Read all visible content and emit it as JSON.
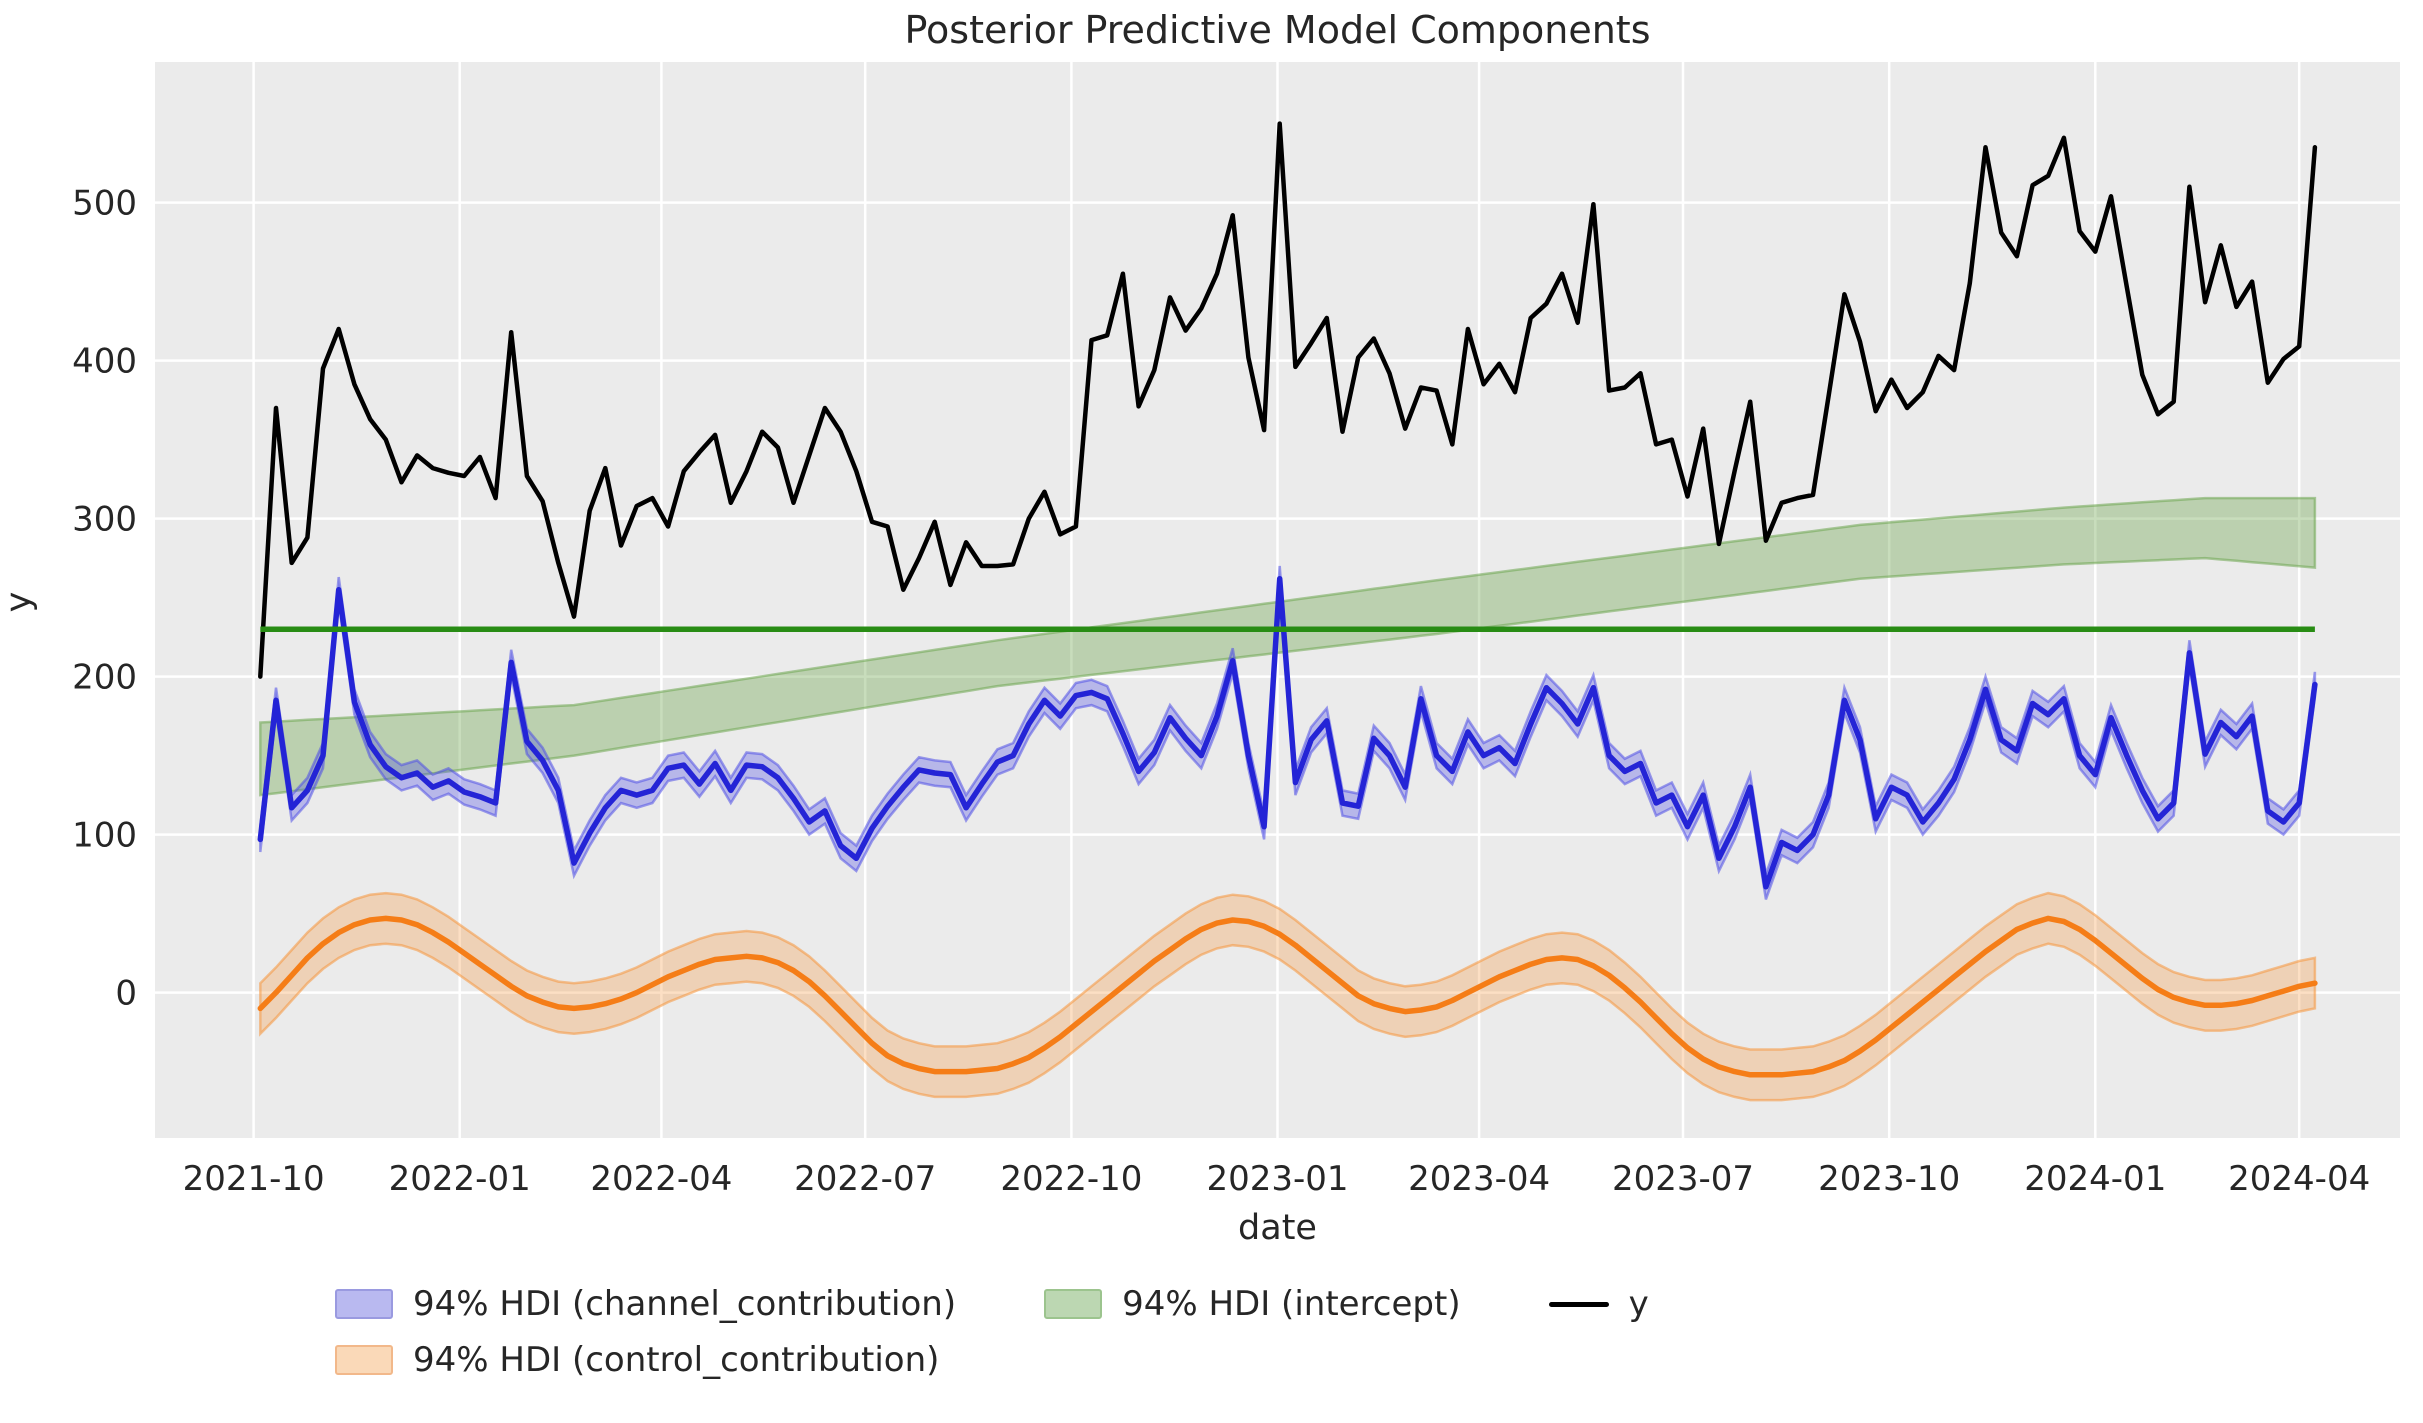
{
  "title": "Posterior Predictive Model Components",
  "xlabel": "date",
  "ylabel": "y",
  "legend": [
    {
      "label": "94% HDI (channel_contribution)",
      "type": "patch",
      "fill": "#b9b9f0",
      "border": "#9a9ae0"
    },
    {
      "label": "94% HDI (intercept)",
      "type": "patch",
      "fill": "#bcd7b2",
      "border": "#9cc48e"
    },
    {
      "label": "y",
      "type": "line",
      "fill": "#000000",
      "border": "#000000"
    },
    {
      "label": "94% HDI (control_contribution)",
      "type": "patch",
      "fill": "#fad9b8",
      "border": "#f2b88a"
    }
  ],
  "colors": {
    "plot_bg": "#ebebeb",
    "grid": "#ffffff",
    "y_line": "#000000",
    "channel_line": "#2424d6",
    "channel_band": "rgba(80,80,230,0.33)",
    "channel_band_edge": "rgba(80,80,230,0.55)",
    "control_line": "#f57d17",
    "control_band": "rgba(246,150,60,0.30)",
    "control_band_edge": "rgba(246,150,60,0.55)",
    "intercept_line": "#288c14",
    "intercept_band": "rgba(110,165,80,0.38)",
    "intercept_band_edge": "rgba(110,165,80,0.55)",
    "text": "#262626"
  },
  "chart_data": {
    "type": "line",
    "title": "Posterior Predictive Model Components",
    "xlabel": "date",
    "ylabel": "y",
    "grid": true,
    "legend_position": "lower center outside",
    "x_start_date": "2021-10-04",
    "x_freq_days": 7,
    "n_points": 132,
    "x_domain": [
      "2021-08-18",
      "2024-05-16"
    ],
    "ylim": [
      -92,
      589
    ],
    "yticks": [
      0,
      100,
      200,
      300,
      400,
      500
    ],
    "xticks": [
      {
        "date": "2021-10-01",
        "label": "2021-10"
      },
      {
        "date": "2022-01-01",
        "label": "2022-01"
      },
      {
        "date": "2022-04-01",
        "label": "2022-04"
      },
      {
        "date": "2022-07-01",
        "label": "2022-07"
      },
      {
        "date": "2022-10-01",
        "label": "2022-10"
      },
      {
        "date": "2023-01-01",
        "label": "2023-01"
      },
      {
        "date": "2023-04-01",
        "label": "2023-04"
      },
      {
        "date": "2023-07-01",
        "label": "2023-07"
      },
      {
        "date": "2023-10-01",
        "label": "2023-10"
      },
      {
        "date": "2024-01-01",
        "label": "2024-01"
      },
      {
        "date": "2024-04-01",
        "label": "2024-04"
      }
    ],
    "series": [
      {
        "name": "y",
        "style": "line",
        "values": [
          200,
          370,
          272,
          288,
          395,
          420,
          385,
          363,
          350,
          323,
          340,
          332,
          329,
          327,
          339,
          313,
          418,
          327,
          311,
          272,
          238,
          305,
          332,
          283,
          308,
          313,
          295,
          330,
          342,
          353,
          310,
          330,
          355,
          345,
          310,
          340,
          370,
          355,
          330,
          298,
          295,
          255,
          275,
          298,
          258,
          285,
          270,
          270,
          271,
          300,
          317,
          290,
          295,
          413,
          416,
          455,
          371,
          394,
          440,
          419,
          433,
          455,
          492,
          402,
          356,
          550,
          396,
          411,
          427,
          355,
          402,
          414,
          392,
          357,
          383,
          381,
          347,
          420,
          385,
          398,
          380,
          427,
          436,
          455,
          424,
          499,
          381,
          383,
          392,
          347,
          350,
          314,
          357,
          284,
          330,
          374,
          286,
          310,
          313,
          315,
          378,
          442,
          412,
          368,
          388,
          370,
          380,
          403,
          394,
          449,
          535,
          481,
          466,
          511,
          517,
          541,
          482,
          469,
          504,
          447,
          391,
          366,
          374,
          510,
          437,
          473,
          434,
          450,
          386,
          401,
          409,
          535
        ]
      },
      {
        "name": "channel_contribution",
        "style": "line+hdi",
        "hdi_label": "94% HDI (channel_contribution)",
        "hdi_halfwidth": 8,
        "values": [
          97,
          185,
          117,
          128,
          150,
          255,
          184,
          157,
          143,
          136,
          139,
          130,
          134,
          127,
          124,
          120,
          209,
          159,
          147,
          128,
          82,
          101,
          117,
          128,
          125,
          128,
          142,
          144,
          132,
          145,
          128,
          144,
          143,
          136,
          123,
          108,
          115,
          93,
          85,
          104,
          118,
          130,
          141,
          139,
          138,
          117,
          132,
          146,
          150,
          170,
          185,
          175,
          188,
          190,
          186,
          164,
          140,
          152,
          174,
          161,
          150,
          175,
          210,
          150,
          105,
          262,
          133,
          160,
          172,
          120,
          118,
          161,
          150,
          130,
          186,
          150,
          140,
          165,
          150,
          155,
          145,
          170,
          193,
          183,
          170,
          193,
          150,
          140,
          145,
          120,
          125,
          105,
          125,
          85,
          105,
          130,
          67,
          95,
          90,
          100,
          125,
          185,
          160,
          110,
          130,
          125,
          108,
          120,
          135,
          160,
          192,
          160,
          153,
          183,
          176,
          186,
          150,
          138,
          174,
          150,
          128,
          110,
          120,
          215,
          151,
          171,
          162,
          175,
          115,
          108,
          120,
          195
        ]
      },
      {
        "name": "control_contribution",
        "style": "line+hdi",
        "hdi_label": "94% HDI (control_contribution)",
        "hdi_halfwidth": 16,
        "values": [
          -10,
          0,
          11,
          22,
          31,
          38,
          43,
          46,
          47,
          46,
          43,
          38,
          32,
          25,
          18,
          11,
          4,
          -2,
          -6,
          -9,
          -10,
          -9,
          -7,
          -4,
          0,
          5,
          10,
          14,
          18,
          21,
          22,
          23,
          22,
          19,
          14,
          7,
          -2,
          -12,
          -22,
          -32,
          -40,
          -45,
          -48,
          -50,
          -50,
          -50,
          -49,
          -48,
          -45,
          -41,
          -35,
          -28,
          -20,
          -12,
          -4,
          4,
          12,
          20,
          27,
          34,
          40,
          44,
          46,
          45,
          42,
          37,
          30,
          22,
          14,
          6,
          -2,
          -7,
          -10,
          -12,
          -11,
          -9,
          -5,
          0,
          5,
          10,
          14,
          18,
          21,
          22,
          21,
          17,
          11,
          3,
          -6,
          -16,
          -26,
          -35,
          -42,
          -47,
          -50,
          -52,
          -52,
          -52,
          -51,
          -50,
          -47,
          -43,
          -37,
          -30,
          -22,
          -14,
          -6,
          2,
          10,
          18,
          26,
          33,
          40,
          44,
          47,
          45,
          40,
          33,
          25,
          17,
          9,
          2,
          -3,
          -6,
          -8,
          -8,
          -7,
          -5,
          -2,
          1,
          4,
          6
        ]
      },
      {
        "name": "intercept",
        "style": "hline+hdi",
        "hdi_label": "94% HDI (intercept)",
        "line_value": 230,
        "hdi_anchors": [
          {
            "week": 0,
            "lo": 125,
            "hi": 171
          },
          {
            "week": 20,
            "lo": 150,
            "hi": 182
          },
          {
            "week": 47,
            "lo": 194,
            "hi": 223
          },
          {
            "week": 75,
            "lo": 227,
            "hi": 261
          },
          {
            "week": 102,
            "lo": 262,
            "hi": 296
          },
          {
            "week": 115,
            "lo": 271,
            "hi": 307
          },
          {
            "week": 124,
            "lo": 275,
            "hi": 313
          },
          {
            "week": 131,
            "lo": 269,
            "hi": 313
          }
        ]
      }
    ]
  }
}
